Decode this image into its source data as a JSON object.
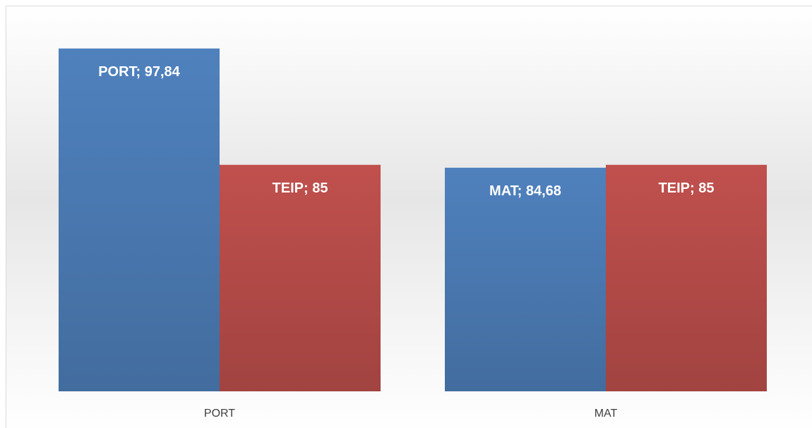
{
  "chart_data": {
    "type": "bar",
    "categories": [
      "PORT",
      "MAT"
    ],
    "series": [
      {
        "color": "#4f81bd",
        "values": [
          97.84,
          84.68
        ],
        "value_labels": [
          "PORT; 97,84",
          "MAT; 84,68"
        ]
      },
      {
        "color": "#c0504d",
        "values": [
          85,
          85
        ],
        "value_labels": [
          "TEIP; 85",
          "TEIP; 85"
        ]
      }
    ],
    "ylim": [
      60,
      100
    ]
  }
}
